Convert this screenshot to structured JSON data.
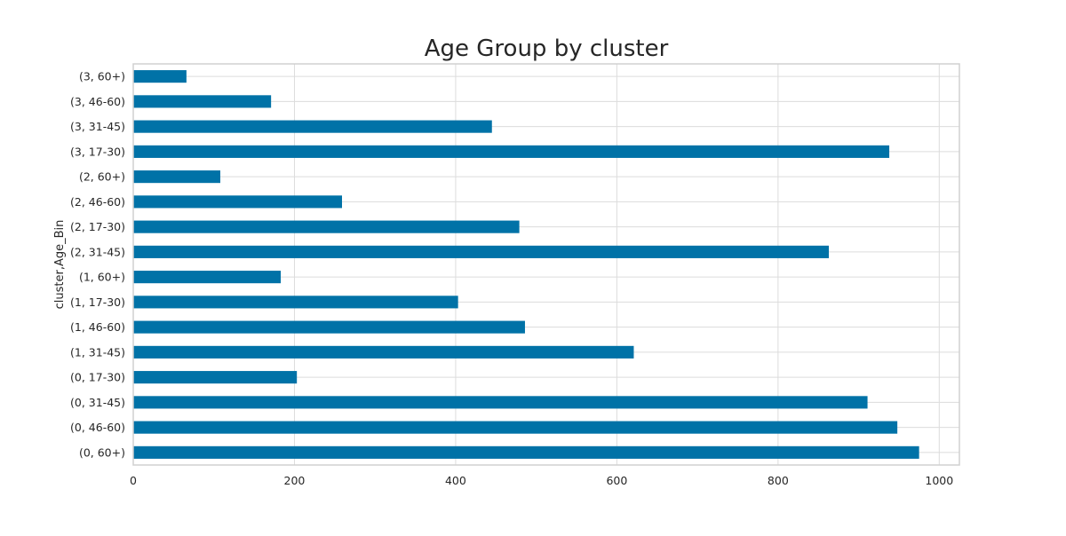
{
  "chart_data": {
    "type": "bar",
    "orientation": "horizontal",
    "title": "Age Group by cluster",
    "xlabel": "",
    "ylabel": "cluster,Age_Bin",
    "xlim": [
      0,
      1025
    ],
    "xticks": [
      0,
      200,
      400,
      600,
      800,
      1000
    ],
    "xtick_labels": [
      "0",
      "200",
      "400",
      "600",
      "800",
      "1000"
    ],
    "grid": true,
    "bar_color": "#0072a7",
    "categories": [
      "(0, 60+)",
      "(0, 46-60)",
      "(0, 31-45)",
      "(0, 17-30)",
      "(1, 31-45)",
      "(1, 46-60)",
      "(1, 17-30)",
      "(1, 60+)",
      "(2, 31-45)",
      "(2, 17-30)",
      "(2, 46-60)",
      "(2, 60+)",
      "(3, 17-30)",
      "(3, 31-45)",
      "(3, 46-60)",
      "(3, 60+)"
    ],
    "values": [
      975,
      948,
      911,
      203,
      621,
      486,
      403,
      183,
      863,
      479,
      259,
      108,
      938,
      445,
      171,
      66
    ]
  }
}
